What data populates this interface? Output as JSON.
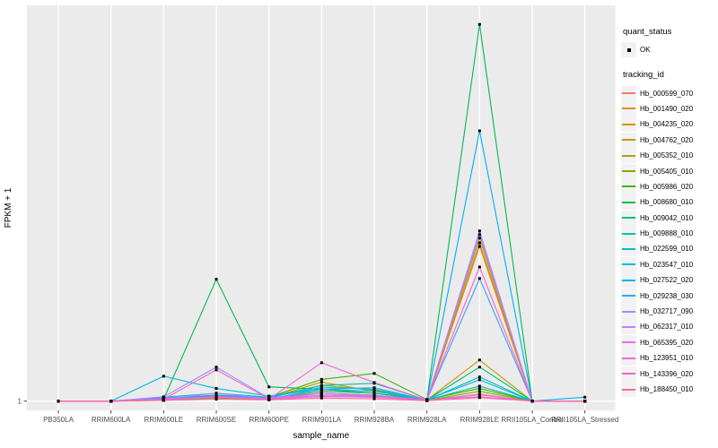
{
  "figure": {
    "background": "#FFFFFF",
    "panel_bg": "#EBEBEB",
    "grid_color": "#FFFFFF",
    "tick_color": "#333333",
    "tick_text_color": "#4D4D4D",
    "point_color": "#000000",
    "legend_key_bg": "#F2F2F2"
  },
  "axes": {
    "x_title": "sample_name",
    "y_title": "FPKM + 1",
    "y_tick_label": "1"
  },
  "legend": {
    "quant_status_title": "quant_status",
    "quant_status_items": [
      {
        "label": "OK",
        "symbol": "black-point"
      }
    ],
    "tracking_id_title": "tracking_id"
  },
  "chart_data": {
    "type": "line",
    "title": "",
    "xlabel": "sample_name",
    "ylabel": "FPKM + 1",
    "x": [
      "PB350LA",
      "RRIM600LA",
      "RRIM600LE",
      "RRIM600SE",
      "RRIM600PE",
      "RRIM901LA",
      "RRIM928BA",
      "RRIM928LA",
      "RRIM928LE",
      "RRII105LA_Control",
      "RRII105LA_Stressed"
    ],
    "y_axis_note": "log-style axis of FPKM + 1; only labeled tick is 1 at the baseline. Values below are relative heights above the baseline as a fraction of full panel height (0 = FPKM+1 = 1).",
    "grid": "vertical-major-plus-baseline",
    "legend_position": "right",
    "point_marker": "small black square (quant_status = OK)",
    "series": [
      {
        "name": "Hb_000599_070",
        "color": "#F8766D",
        "values": [
          0,
          0,
          0.004,
          0.01,
          0.004,
          0.012,
          0.01,
          0.002,
          0.018,
          0,
          0
        ]
      },
      {
        "name": "Hb_001490_020",
        "color": "#EA8331",
        "values": [
          0,
          0,
          0.004,
          0.012,
          0.006,
          0.015,
          0.012,
          0.002,
          0.4,
          0,
          0
        ]
      },
      {
        "name": "Hb_004235_020",
        "color": "#D89000",
        "values": [
          0,
          0,
          0.003,
          0.01,
          0.005,
          0.03,
          0.02,
          0.002,
          0.391,
          0,
          0
        ]
      },
      {
        "name": "Hb_004762_020",
        "color": "#C09B00",
        "values": [
          0,
          0,
          0.004,
          0.015,
          0.008,
          0.048,
          0.025,
          0.003,
          0.104,
          0,
          0
        ]
      },
      {
        "name": "Hb_005352_010",
        "color": "#A3A500",
        "values": [
          0,
          0,
          0.003,
          0.012,
          0.01,
          0.04,
          0.028,
          0.003,
          0.412,
          0,
          0
        ]
      },
      {
        "name": "Hb_005405_010",
        "color": "#7CAE00",
        "values": [
          0,
          0,
          0.002,
          0.008,
          0.004,
          0.02,
          0.015,
          0.002,
          0.025,
          0,
          0
        ]
      },
      {
        "name": "Hb_005986_020",
        "color": "#39B600",
        "values": [
          0,
          0,
          0.004,
          0.015,
          0.01,
          0.055,
          0.07,
          0.004,
          0.032,
          0,
          0
        ]
      },
      {
        "name": "Hb_008680_010",
        "color": "#00BB4E",
        "values": [
          0,
          0,
          0.005,
          0.308,
          0.036,
          0.03,
          0.02,
          0.004,
          0.952,
          0,
          0
        ]
      },
      {
        "name": "Hb_009042_010",
        "color": "#00BF7D",
        "values": [
          0,
          0,
          0.003,
          0.01,
          0.006,
          0.025,
          0.02,
          0.003,
          0.086,
          0,
          0
        ]
      },
      {
        "name": "Hb_009888_010",
        "color": "#00C1A3",
        "values": [
          0,
          0,
          0.004,
          0.012,
          0.008,
          0.04,
          0.045,
          0.003,
          0.038,
          0,
          0
        ]
      },
      {
        "name": "Hb_022599_010",
        "color": "#00BFC4",
        "values": [
          0,
          0,
          0.01,
          0.02,
          0.01,
          0.035,
          0.03,
          0.003,
          0.061,
          0,
          0
        ]
      },
      {
        "name": "Hb_023547_010",
        "color": "#00BAE0",
        "values": [
          0,
          0,
          0.063,
          0.032,
          0.013,
          0.03,
          0.025,
          0.004,
          0.054,
          0,
          0
        ]
      },
      {
        "name": "Hb_027522_020",
        "color": "#00B0F6",
        "values": [
          0,
          0,
          0.008,
          0.015,
          0.008,
          0.02,
          0.015,
          0.003,
          0.683,
          0,
          0.01
        ]
      },
      {
        "name": "Hb_029238_030",
        "color": "#35A2FF",
        "values": [
          0,
          0,
          0.006,
          0.012,
          0.006,
          0.03,
          0.034,
          0.003,
          0.31,
          0,
          0
        ]
      },
      {
        "name": "Hb_032717_090",
        "color": "#9590FF",
        "values": [
          0,
          0,
          0.011,
          0.086,
          0.008,
          0.02,
          0.015,
          0.003,
          0.421,
          0,
          0
        ]
      },
      {
        "name": "Hb_062317_010",
        "color": "#C77CFF",
        "values": [
          0,
          0,
          0.006,
          0.02,
          0.006,
          0.015,
          0.012,
          0.003,
          0.43,
          0,
          0
        ]
      },
      {
        "name": "Hb_065395_020",
        "color": "#E76BF3",
        "values": [
          0,
          0,
          0.004,
          0.012,
          0.005,
          0.012,
          0.01,
          0.002,
          0.016,
          0,
          0
        ]
      },
      {
        "name": "Hb_123951_010",
        "color": "#FA62DB",
        "values": [
          0,
          0,
          0.004,
          0.01,
          0.005,
          0.097,
          0.047,
          0.003,
          0.011,
          0,
          0
        ]
      },
      {
        "name": "Hb_143396_020",
        "color": "#FF61C3",
        "values": [
          0,
          0,
          0.005,
          0.079,
          0.006,
          0.02,
          0.012,
          0.003,
          0.339,
          0,
          0
        ]
      },
      {
        "name": "Hb_188450_010",
        "color": "#FF67A4",
        "values": [
          0,
          0,
          0.002,
          0.005,
          0.003,
          0.008,
          0.006,
          0.001,
          0.009,
          0,
          0
        ]
      }
    ]
  }
}
